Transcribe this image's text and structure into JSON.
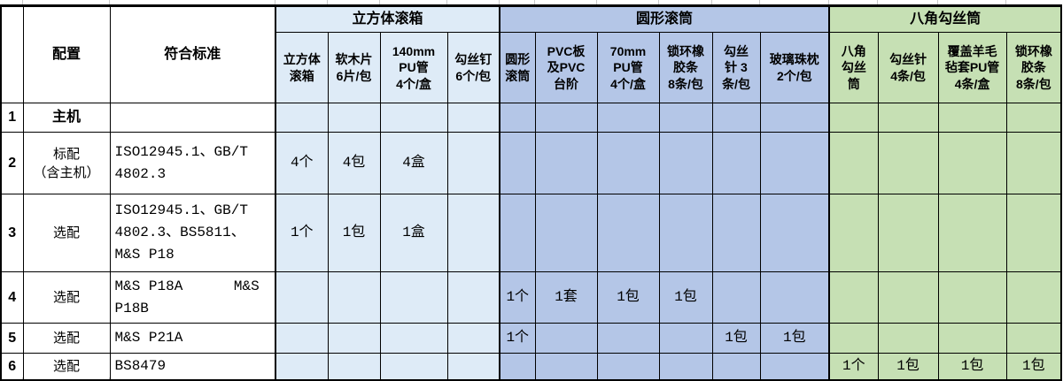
{
  "colors": {
    "cube_group_bg": "#DEEBF7",
    "circular_group_bg": "#B4C6E7",
    "octagon_group_bg": "#C6E0B4",
    "border": "#000000",
    "gridline": "#C9C9C9"
  },
  "header": {
    "config_label": "配置",
    "standard_label": "符合标准",
    "groups": [
      {
        "label": "立方体滚箱"
      },
      {
        "label": "圆形滚筒"
      },
      {
        "label": "八角勾丝筒"
      }
    ],
    "columns": [
      {
        "label": "立方体\n滚箱"
      },
      {
        "label": "软木片\n6片/包"
      },
      {
        "label": "140mm\nPU管\n4个/盒"
      },
      {
        "label": "勾丝钉\n6个/包"
      },
      {
        "label": "圆形\n滚筒"
      },
      {
        "label": "PVC板\n及PVC\n台阶"
      },
      {
        "label": "70mm\nPU管\n4个/盒"
      },
      {
        "label": "锁环橡\n胶条\n8条/包"
      },
      {
        "label": "勾丝\n针 3\n条/包"
      },
      {
        "label": "玻璃珠枕\n2个/包"
      },
      {
        "label": "八角\n勾丝\n筒"
      },
      {
        "label": "勾丝针\n4条/包"
      },
      {
        "label": "覆盖羊毛\n毡套PU管\n4条/盒"
      },
      {
        "label": "锁环橡\n胶条\n8条/包"
      }
    ]
  },
  "rows": [
    {
      "num": "1",
      "config": "主机",
      "standard": "",
      "cells": [
        "",
        "",
        "",
        "",
        "",
        "",
        "",
        "",
        "",
        "",
        "",
        "",
        "",
        ""
      ]
    },
    {
      "num": "2",
      "config": "标配\n（含主机）",
      "standard": "ISO12945.1、GB/T 4802.3",
      "cells": [
        "4个",
        "4包",
        "4盒",
        "",
        "",
        "",
        "",
        "",
        "",
        "",
        "",
        "",
        "",
        ""
      ]
    },
    {
      "num": "3",
      "config": "选配",
      "standard": "ISO12945.1、GB/T 4802.3、BS5811、M&S P18",
      "cells": [
        "1个",
        "1包",
        "1盒",
        "",
        "",
        "",
        "",
        "",
        "",
        "",
        "",
        "",
        "",
        ""
      ]
    },
    {
      "num": "4",
      "config": "选配",
      "standard": "M&S P18A      M&S P18B",
      "cells": [
        "",
        "",
        "",
        "",
        "1个",
        "1套",
        "1包",
        "1包",
        "",
        "",
        "",
        "",
        "",
        ""
      ]
    },
    {
      "num": "5",
      "config": "选配",
      "standard": "M&S P21A",
      "cells": [
        "",
        "",
        "",
        "",
        "1个",
        "",
        "",
        "",
        "1包",
        "1包",
        "",
        "",
        "",
        ""
      ]
    },
    {
      "num": "6",
      "config": "选配",
      "standard": "BS8479",
      "cells": [
        "",
        "",
        "",
        "",
        "",
        "",
        "",
        "",
        "",
        "",
        "1个",
        "1包",
        "1包",
        "1包"
      ]
    }
  ]
}
